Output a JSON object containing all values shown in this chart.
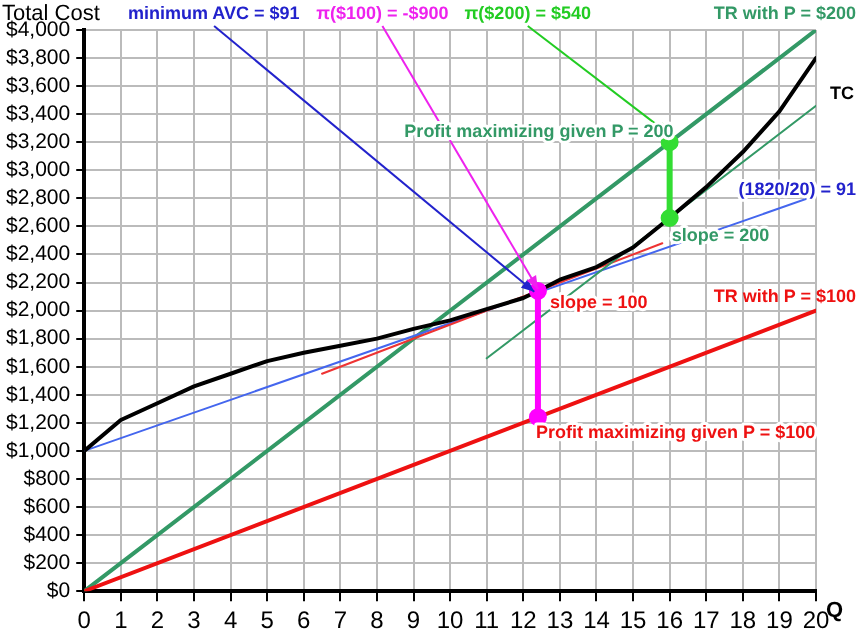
{
  "chart_data": {
    "type": "line",
    "ylabel": "Total Cost",
    "xlabel": "Q",
    "xlim": [
      0,
      20
    ],
    "xticks": [
      0,
      1,
      2,
      3,
      4,
      5,
      6,
      7,
      8,
      9,
      10,
      11,
      12,
      13,
      14,
      15,
      16,
      17,
      18,
      19,
      20
    ],
    "ylim": [
      0,
      4000
    ],
    "yticks": [
      {
        "value": 0,
        "label": "$0"
      },
      {
        "value": 200,
        "label": "$200"
      },
      {
        "value": 400,
        "label": "$400"
      },
      {
        "value": 600,
        "label": "$600"
      },
      {
        "value": 800,
        "label": "$800"
      },
      {
        "value": 1000,
        "label": "$1,000"
      },
      {
        "value": 1200,
        "label": "$1,200"
      },
      {
        "value": 1400,
        "label": "$1,400"
      },
      {
        "value": 1600,
        "label": "$1,600"
      },
      {
        "value": 1800,
        "label": "$1,800"
      },
      {
        "value": 2000,
        "label": "$2,000"
      },
      {
        "value": 2200,
        "label": "$2,200"
      },
      {
        "value": 2400,
        "label": "$2,400"
      },
      {
        "value": 2600,
        "label": "$2,600"
      },
      {
        "value": 2800,
        "label": "$2,800"
      },
      {
        "value": 3000,
        "label": "$3,000"
      },
      {
        "value": 3200,
        "label": "$3,200"
      },
      {
        "value": 3400,
        "label": "$3,400"
      },
      {
        "value": 3600,
        "label": "$3,600"
      },
      {
        "value": 3800,
        "label": "$3,800"
      },
      {
        "value": 4000,
        "label": "$4,000"
      }
    ],
    "grid": true,
    "legend": false,
    "series": [
      {
        "name": "TR with P = $200",
        "color": "#339966",
        "x": [
          0,
          20
        ],
        "values": [
          0,
          4000
        ]
      },
      {
        "name": "TR with P = $100",
        "color": "#ee1111",
        "x": [
          0,
          20
        ],
        "values": [
          0,
          2000
        ]
      },
      {
        "color": "#4466ee",
        "x": [
          0,
          20
        ],
        "values": [
          1000,
          2820
        ]
      },
      {
        "color": "#ee3333",
        "x": [
          6.5,
          15.8
        ],
        "values": [
          1550,
          2480
        ]
      },
      {
        "color": "#339966",
        "x": [
          11,
          20
        ],
        "values": [
          1660,
          3460
        ]
      },
      {
        "name": "TC",
        "color": "#000000",
        "x": [
          0,
          1,
          2,
          3,
          4,
          5,
          6,
          7,
          8,
          9,
          10,
          11,
          12,
          12.4,
          13,
          14,
          15,
          16,
          17,
          18,
          19,
          20
        ],
        "values": [
          1000,
          1220,
          1340,
          1460,
          1550,
          1640,
          1700,
          1750,
          1800,
          1870,
          1930,
          2010,
          2090,
          2140,
          2220,
          2310,
          2450,
          2660,
          2880,
          3130,
          3420,
          3800
        ]
      },
      {
        "color": "#ff00ff",
        "marker": "circle",
        "x": [
          12.4,
          12.4
        ],
        "values": [
          1240,
          2140
        ]
      },
      {
        "color": "#33dd33",
        "marker": "circle",
        "x": [
          16,
          16
        ],
        "values": [
          2660,
          3200
        ]
      }
    ],
    "annotations": [
      {
        "text": "minimum AVC = $91",
        "x": 12.3,
        "y": 2120
      },
      {
        "text": "π($100) = -$900",
        "x": 12.4,
        "y": 2140
      },
      {
        "text": "π($200) = $540",
        "x": 16,
        "y": 3240
      },
      {
        "text": "Profit maximizing given P = 200",
        "x": 16,
        "y": 3200
      },
      {
        "text": "(1820/20) = 91",
        "x": 20,
        "y": 2820
      },
      {
        "text": "slope = 200",
        "x": 16,
        "y": 2660
      },
      {
        "text": "slope = 100",
        "x": 12.4,
        "y": 2140
      },
      {
        "text": "Profit maximizing given P = $100",
        "x": 12.4,
        "y": 1240
      }
    ]
  }
}
